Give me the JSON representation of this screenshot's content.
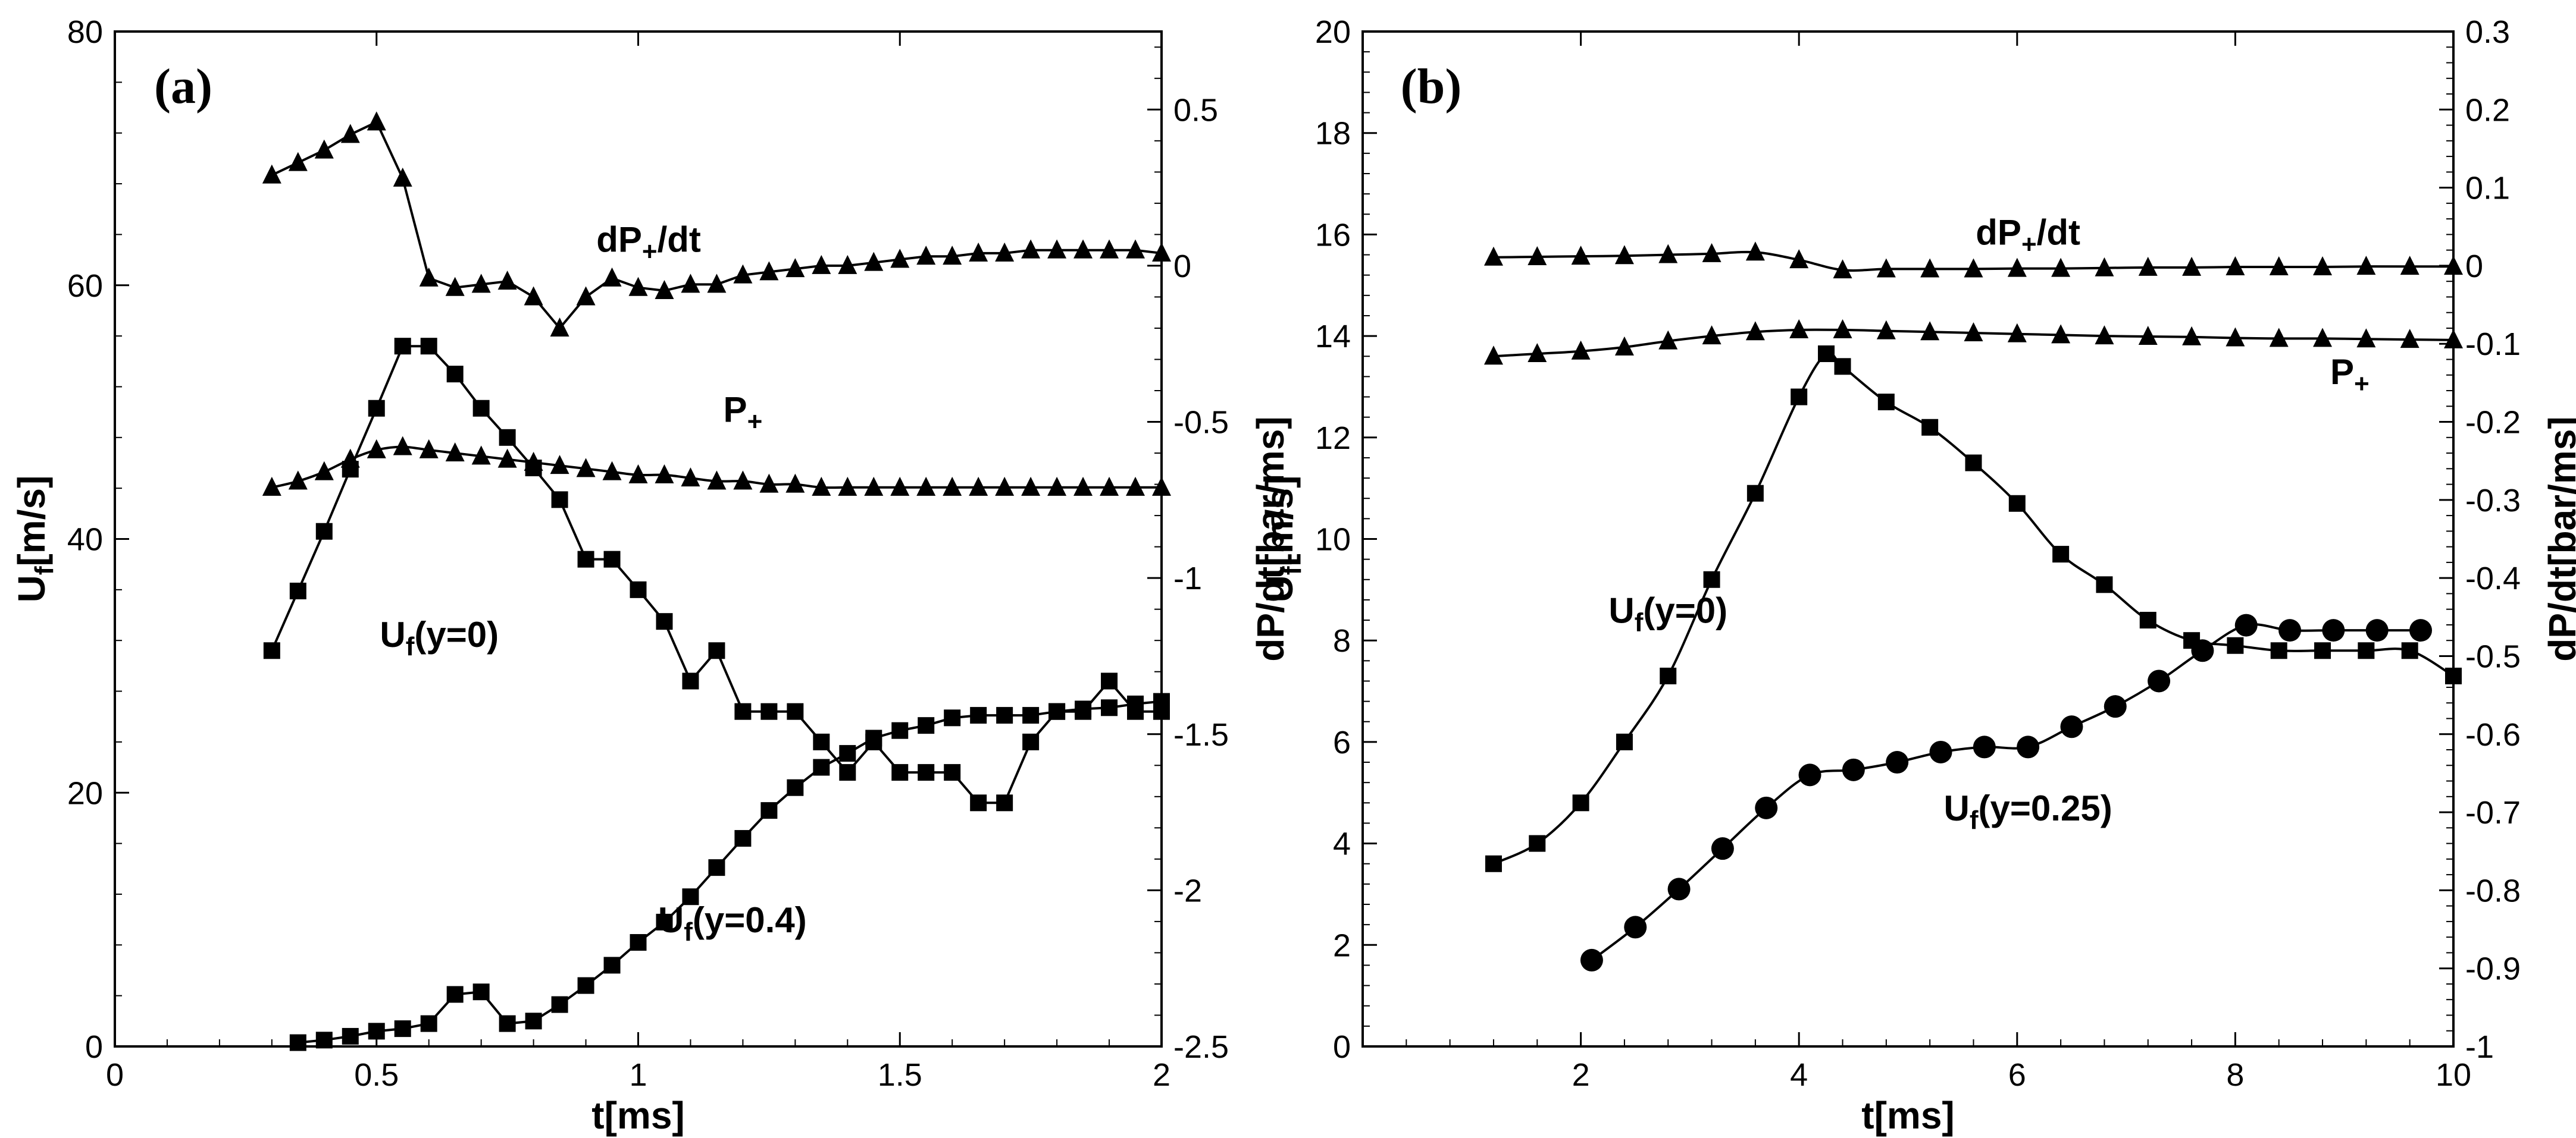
{
  "chart_data": [
    {
      "type": "line",
      "panel": "(a)",
      "xlabel_main": "t[ms]",
      "ylabel_left": {
        "main": "U",
        "sub": "f",
        "rest": "[m/s]"
      },
      "ylabel_right": "dP/dt[bar/ms]",
      "xlim": [
        0,
        2
      ],
      "ylim_left": [
        0,
        80
      ],
      "ylim_right": [
        -2.5,
        0.75
      ],
      "x_ticks": [
        0,
        0.5,
        1,
        1.5,
        2
      ],
      "x_tick_labels": [
        "0",
        "0.5",
        "1",
        "1.5",
        "2"
      ],
      "y_left_ticks": [
        0,
        20,
        40,
        60,
        80
      ],
      "y_left_tick_labels": [
        "0",
        "20",
        "40",
        "60",
        "80"
      ],
      "y_right_ticks": [
        -2.5,
        -2,
        -1.5,
        -1,
        -0.5,
        0,
        0.5
      ],
      "y_right_tick_labels": [
        "-2.5",
        "-2",
        "-1.5",
        "-1",
        "-0.5",
        "0",
        "0.5"
      ],
      "series": [
        {
          "name": "dP+/dt",
          "axis": "right",
          "marker": "triangle",
          "smooth": false,
          "label": {
            "main": "dP",
            "sub": "+",
            "rest": "/dt",
            "at": [
              1.02,
              0.045
            ]
          },
          "x": [
            0.3,
            0.35,
            0.4,
            0.45,
            0.5,
            0.55,
            0.6,
            0.65,
            0.7,
            0.75,
            0.8,
            0.85,
            0.9,
            0.95,
            1.0,
            1.05,
            1.1,
            1.15,
            1.2,
            1.25,
            1.3,
            1.35,
            1.4,
            1.45,
            1.5,
            1.55,
            1.6,
            1.65,
            1.7,
            1.75,
            1.8,
            1.85,
            1.9,
            1.95,
            2.0
          ],
          "y": [
            0.29,
            0.33,
            0.37,
            0.42,
            0.46,
            0.28,
            -0.04,
            -0.07,
            -0.06,
            -0.05,
            -0.1,
            -0.2,
            -0.1,
            -0.04,
            -0.07,
            -0.08,
            -0.06,
            -0.06,
            -0.03,
            -0.02,
            -0.01,
            0.0,
            0.0,
            0.01,
            0.02,
            0.03,
            0.03,
            0.04,
            0.04,
            0.05,
            0.05,
            0.05,
            0.05,
            0.05,
            0.04
          ]
        },
        {
          "name": "P+",
          "axis": "right",
          "marker": "triangle",
          "smooth": true,
          "label": {
            "main": "P",
            "sub": "+",
            "rest": "",
            "at": [
              1.2,
              -0.5
            ]
          },
          "x": [
            0.3,
            0.35,
            0.4,
            0.45,
            0.5,
            0.55,
            0.6,
            0.65,
            0.7,
            0.75,
            0.8,
            0.85,
            0.9,
            0.95,
            1.0,
            1.05,
            1.1,
            1.15,
            1.2,
            1.25,
            1.3,
            1.35,
            1.4,
            1.45,
            1.5,
            1.55,
            1.6,
            1.65,
            1.7,
            1.75,
            1.8,
            1.85,
            1.9,
            1.95,
            2.0
          ],
          "y": [
            -0.71,
            -0.69,
            -0.66,
            -0.62,
            -0.59,
            -0.58,
            -0.59,
            -0.6,
            -0.61,
            -0.62,
            -0.63,
            -0.64,
            -0.65,
            -0.66,
            -0.67,
            -0.67,
            -0.68,
            -0.69,
            -0.69,
            -0.7,
            -0.7,
            -0.71,
            -0.71,
            -0.71,
            -0.71,
            -0.71,
            -0.71,
            -0.71,
            -0.71,
            -0.71,
            -0.71,
            -0.71,
            -0.71,
            -0.71,
            -0.71
          ]
        },
        {
          "name": "Uf(y=0)",
          "axis": "left",
          "marker": "square",
          "smooth": false,
          "label": {
            "main": "U",
            "sub": "f",
            "rest": "(y=0)",
            "at": [
              0.62,
              31.5
            ]
          },
          "x": [
            0.3,
            0.35,
            0.4,
            0.45,
            0.5,
            0.55,
            0.6,
            0.65,
            0.7,
            0.75,
            0.8,
            0.85,
            0.9,
            0.95,
            1.0,
            1.05,
            1.1,
            1.15,
            1.2,
            1.25,
            1.3,
            1.35,
            1.4,
            1.45,
            1.5,
            1.55,
            1.6,
            1.65,
            1.7,
            1.75,
            1.8,
            1.85,
            1.9,
            1.95,
            2.0
          ],
          "y": [
            31.2,
            35.9,
            40.6,
            45.5,
            50.3,
            55.2,
            55.2,
            53.0,
            50.3,
            48.0,
            45.6,
            43.1,
            38.4,
            38.4,
            36.0,
            33.5,
            28.8,
            31.2,
            26.4,
            26.4,
            26.4,
            24.0,
            21.6,
            24.0,
            21.6,
            21.6,
            21.6,
            19.2,
            19.2,
            24.0,
            26.4,
            26.4,
            28.8,
            26.4,
            26.4
          ]
        },
        {
          "name": "Uf(y=0.4)",
          "axis": "left",
          "marker": "square",
          "smooth": false,
          "label": {
            "main": "U",
            "sub": "f",
            "rest": "(y=0.4)",
            "at": [
              1.18,
              9.0
            ]
          },
          "x": [
            0.35,
            0.4,
            0.45,
            0.5,
            0.55,
            0.6,
            0.65,
            0.7,
            0.75,
            0.8,
            0.85,
            0.9,
            0.95,
            1.0,
            1.05,
            1.1,
            1.15,
            1.2,
            1.25,
            1.3,
            1.35,
            1.4,
            1.45,
            1.5,
            1.55,
            1.6,
            1.65,
            1.7,
            1.75,
            1.8,
            1.85,
            1.9,
            1.95,
            2.0
          ],
          "y": [
            0.3,
            0.5,
            0.8,
            1.2,
            1.4,
            1.8,
            4.1,
            4.3,
            1.8,
            2.0,
            3.3,
            4.8,
            6.4,
            8.2,
            9.8,
            11.8,
            14.1,
            16.4,
            18.6,
            20.4,
            22.0,
            23.1,
            24.3,
            24.9,
            25.3,
            25.9,
            26.1,
            26.1,
            26.1,
            26.4,
            26.6,
            26.7,
            27.0,
            27.2
          ]
        }
      ],
      "annotations": []
    },
    {
      "type": "line",
      "panel": "(b)",
      "xlabel_main": "t[ms]",
      "ylabel_left": {
        "main": "U",
        "sub": "f",
        "rest": "[m/s]"
      },
      "ylabel_right": "dP/dt[bar/ms]",
      "xlim": [
        0,
        10
      ],
      "ylim_left": [
        0,
        20
      ],
      "ylim_right": [
        -1,
        0.3
      ],
      "x_ticks": [
        2,
        4,
        6,
        8,
        10
      ],
      "x_tick_labels": [
        "2",
        "4",
        "6",
        "8",
        "10"
      ],
      "y_left_ticks": [
        0,
        2,
        4,
        6,
        8,
        10,
        12,
        14,
        16,
        18,
        20
      ],
      "y_left_tick_labels": [
        "0",
        "2",
        "4",
        "6",
        "8",
        "10",
        "12",
        "14",
        "16",
        "18",
        "20"
      ],
      "y_right_ticks": [
        -1,
        -0.9,
        -0.8,
        -0.7,
        -0.6,
        -0.5,
        -0.4,
        -0.3,
        -0.2,
        -0.1,
        0,
        0.1,
        0.2,
        0.3
      ],
      "y_right_tick_labels": [
        "-1",
        "-0.9",
        "-0.8",
        "-0.7",
        "-0.6",
        "-0.5",
        "-0.4",
        "-0.3",
        "-0.2",
        "-0.1",
        "0",
        "0.1",
        "0.2",
        "0.3"
      ],
      "series": [
        {
          "name": "dP+/dt",
          "axis": "left",
          "marker": "triangle",
          "smooth": true,
          "label": {
            "main": "dP",
            "sub": "+",
            "rest": "/dt",
            "at": [
              6.1,
              15.8
            ]
          },
          "x": [
            1.2,
            1.6,
            2.0,
            2.4,
            2.8,
            3.2,
            3.6,
            4.0,
            4.4,
            4.8,
            5.2,
            5.6,
            6.0,
            6.4,
            6.8,
            7.2,
            7.6,
            8.0,
            8.4,
            8.8,
            9.2,
            9.6,
            10.0
          ],
          "y": [
            15.55,
            15.56,
            15.57,
            15.58,
            15.6,
            15.62,
            15.65,
            15.5,
            15.3,
            15.32,
            15.32,
            15.32,
            15.33,
            15.33,
            15.34,
            15.35,
            15.35,
            15.36,
            15.36,
            15.36,
            15.37,
            15.37,
            15.37
          ]
        },
        {
          "name": "P+",
          "axis": "left",
          "marker": "triangle",
          "smooth": true,
          "label": {
            "main": "P",
            "sub": "+",
            "rest": "",
            "at": [
              9.05,
              13.05
            ]
          },
          "x": [
            1.2,
            1.6,
            2.0,
            2.4,
            2.8,
            3.2,
            3.6,
            4.0,
            4.4,
            4.8,
            5.2,
            5.6,
            6.0,
            6.4,
            6.8,
            7.2,
            7.6,
            8.0,
            8.4,
            8.8,
            9.2,
            9.6,
            10.0
          ],
          "y": [
            13.6,
            13.65,
            13.7,
            13.78,
            13.9,
            14.0,
            14.08,
            14.12,
            14.12,
            14.1,
            14.08,
            14.06,
            14.04,
            14.02,
            14.0,
            13.99,
            13.98,
            13.96,
            13.95,
            13.95,
            13.94,
            13.93,
            13.92
          ]
        },
        {
          "name": "Uf(y=0)",
          "axis": "left",
          "marker": "square",
          "smooth": true,
          "label": {
            "main": "U",
            "sub": "f",
            "rest": "(y=0)",
            "at": [
              2.8,
              8.35
            ]
          },
          "x": [
            1.2,
            1.6,
            2.0,
            2.4,
            2.8,
            3.2,
            3.6,
            4.0,
            4.25,
            4.4,
            4.8,
            5.2,
            5.6,
            6.0,
            6.4,
            6.8,
            7.2,
            7.6,
            8.0,
            8.4,
            8.8,
            9.2,
            9.6,
            10.0
          ],
          "y": [
            3.6,
            4.0,
            4.8,
            6.0,
            7.3,
            9.2,
            10.9,
            12.8,
            13.65,
            13.4,
            12.7,
            12.2,
            11.5,
            10.7,
            9.7,
            9.1,
            8.4,
            8.0,
            7.9,
            7.8,
            7.8,
            7.8,
            7.8,
            7.3
          ]
        },
        {
          "name": "Uf(y=0.25)",
          "axis": "left",
          "marker": "circle",
          "smooth": true,
          "label": {
            "main": "U",
            "sub": "f",
            "rest": "(y=0.25)",
            "at": [
              6.1,
              4.45
            ]
          },
          "x": [
            2.1,
            2.5,
            2.9,
            3.3,
            3.7,
            4.1,
            4.5,
            4.9,
            5.3,
            5.7,
            6.1,
            6.5,
            6.9,
            7.3,
            7.7,
            8.1,
            8.5,
            8.9,
            9.3,
            9.7
          ],
          "y": [
            1.7,
            2.35,
            3.1,
            3.9,
            4.7,
            5.35,
            5.45,
            5.6,
            5.8,
            5.9,
            5.9,
            6.3,
            6.7,
            7.2,
            7.8,
            8.3,
            8.2,
            8.2,
            8.2,
            8.2
          ]
        }
      ],
      "annotations": []
    }
  ]
}
